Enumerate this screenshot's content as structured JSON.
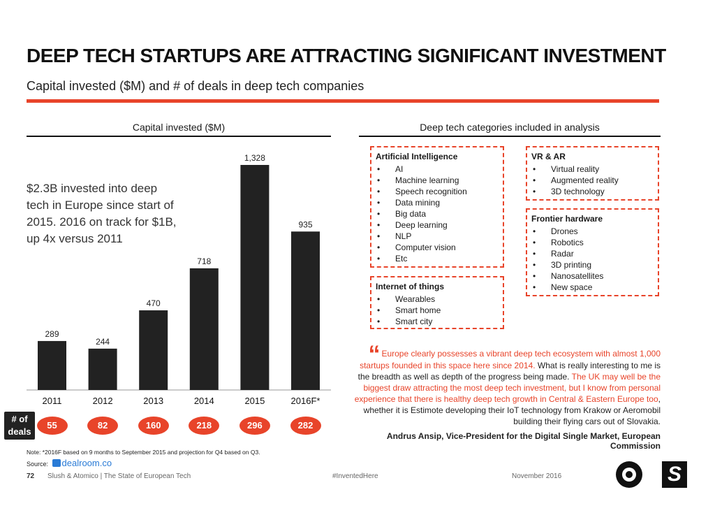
{
  "header": {
    "title": "DEEP TECH STARTUPS ARE ATTRACTING SIGNIFICANT INVESTMENT",
    "subtitle": "Capital invested ($M) and # of deals in deep tech companies"
  },
  "left_panel": {
    "heading": "Capital invested ($M)",
    "callout": "$2.3B invested into deep tech in Europe since start of 2015. 2016 on track for $1B, up 4x versus 2011",
    "deals_label_1": "# of",
    "deals_label_2": "deals"
  },
  "chart_data": {
    "type": "bar",
    "title": "Capital invested ($M)",
    "categories": [
      "2011",
      "2012",
      "2013",
      "2014",
      "2015",
      "2016F*"
    ],
    "values": [
      289,
      244,
      470,
      718,
      1328,
      935
    ],
    "value_labels": [
      "289",
      "244",
      "470",
      "718",
      "1,328",
      "935"
    ],
    "deals": [
      "55",
      "82",
      "160",
      "218",
      "296",
      "282"
    ],
    "xlabel": "",
    "ylabel": "",
    "ylim": [
      0,
      1328
    ],
    "grid": false,
    "bar_color": "#222222",
    "deal_color": "#e8442a"
  },
  "right_panel": {
    "heading": "Deep tech categories included in analysis",
    "categories": {
      "ai": {
        "title": "Artificial Intelligence",
        "items": [
          "AI",
          "Machine learning",
          "Speech recognition",
          "Data mining",
          "Big data",
          "Deep learning",
          "NLP",
          "Computer vision",
          "Etc"
        ]
      },
      "iot": {
        "title": "Internet of things",
        "items": [
          "Wearables",
          "Smart home",
          "Smart city"
        ]
      },
      "vr": {
        "title": "VR & AR",
        "items": [
          "Virtual reality",
          "Augmented reality",
          "3D technology"
        ]
      },
      "hw": {
        "title": "Frontier hardware",
        "items": [
          "Drones",
          "Robotics",
          "Radar",
          "3D printing",
          "Nanosatellites",
          "New space"
        ]
      }
    }
  },
  "quote": {
    "mark": "“",
    "part1_red": "Europe clearly possesses a vibrant deep tech ecosystem with almost 1,000 startups founded in this space here since 2014.",
    "part2": " What is really interesting to me is the breadth as well as depth of the progress being made. ",
    "part3_red": "The UK may well be the biggest draw attracting the most deep tech investment, but I know from personal experience that there is healthy deep tech growth in Central & Eastern Europe too",
    "part4": ", whether it is Estimote developing their IoT technology from Krakow or Aeromobil building their flying cars out of Slovakia.",
    "attribution": "Andrus Ansip, Vice-President for the Digital Single Market, European Commission"
  },
  "notes": {
    "note": "Note: *2016F based on 9 months to September 2015 and projection for Q4 based on Q3.",
    "source_label": "Source:",
    "source_name": "dealroom.co"
  },
  "footer": {
    "page_number": "72",
    "publication": "Slush & Atomico  |  The State of European Tech",
    "hashtag": "#InventedHere",
    "date": "November 2016",
    "atomico_glyph": "S"
  },
  "colors": {
    "accent": "#e8442a",
    "bar": "#222222",
    "link": "#2a7bd6"
  }
}
